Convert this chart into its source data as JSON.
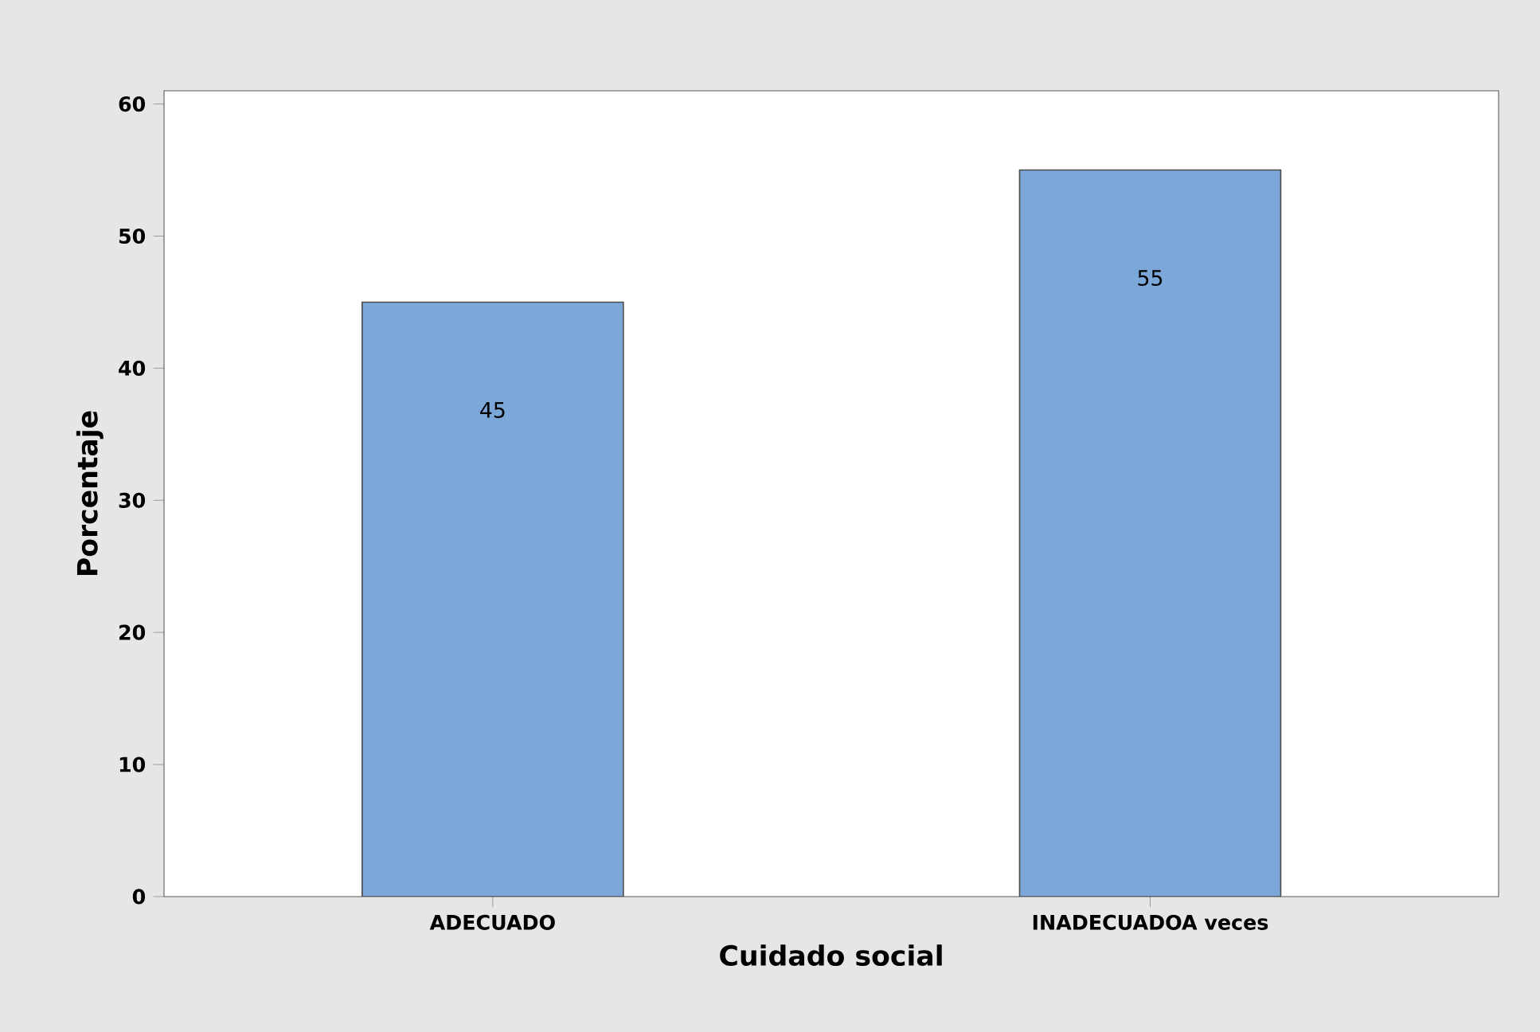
{
  "chart_data": {
    "type": "bar",
    "xlabel": "Cuidado social",
    "ylabel": "Porcentaje",
    "categories": [
      "ADECUADO",
      "INADECUADOA veces"
    ],
    "values": [
      45,
      55
    ],
    "color": "#7ba7d9",
    "ylim": [
      0,
      61
    ],
    "yticks": [
      0,
      10,
      20,
      30,
      40,
      50,
      60
    ],
    "data_labels": true
  }
}
